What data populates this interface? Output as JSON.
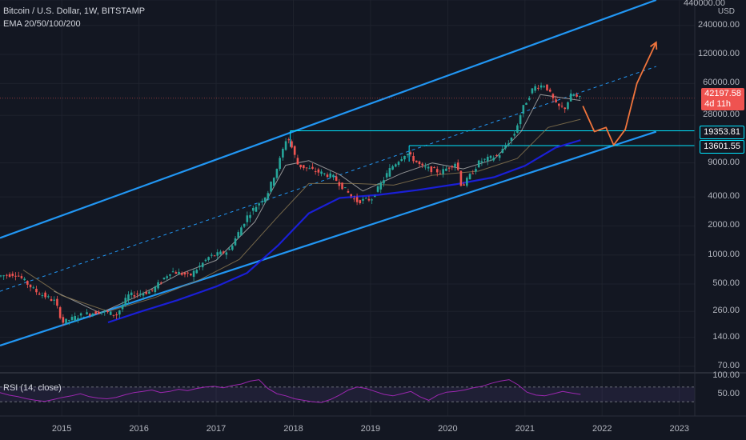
{
  "legend": {
    "title": "Bitcoin / U.S. Dollar, 1W, BITSTAMP",
    "ema": "EMA 20/50/100/200",
    "rsi": "RSI (14, close)"
  },
  "currency": "USD",
  "colors": {
    "background": "#131722",
    "channel": "#2196f3",
    "midline": "#2196f3",
    "support_box": "#00e5ff",
    "projection": "#f0743c",
    "ema20": "#b0b0b0",
    "ema50": "#8d7a52",
    "ema200": "#1a1fd6",
    "up_candle": "#26a69a",
    "down_candle": "#ef5350",
    "rsi_line": "#9c27b0",
    "rsi_band": "#7e57c2"
  },
  "chart_data": {
    "type": "candlestick",
    "title": "Bitcoin / U.S. Dollar, 1W, BITSTAMP",
    "scale": "log",
    "ylim": [
      60,
      440000
    ],
    "y_ticks": [
      "440000.00",
      "240000.00",
      "120000.00",
      "60000.00",
      "28000.00",
      "9000.00",
      "4000.00",
      "2000.00",
      "1000.00",
      "500.00",
      "260.00",
      "140.00",
      "70.00"
    ],
    "x_ticks": [
      "2015",
      "2016",
      "2017",
      "2018",
      "2019",
      "2020",
      "2021",
      "2022",
      "2023"
    ],
    "x_range": [
      2014.2,
      2023.2
    ],
    "price_path": [
      [
        2014.2,
        600
      ],
      [
        2014.45,
        640
      ],
      [
        2014.7,
        420
      ],
      [
        2014.95,
        330
      ],
      [
        2015.05,
        200
      ],
      [
        2015.3,
        240
      ],
      [
        2015.55,
        260
      ],
      [
        2015.75,
        240
      ],
      [
        2015.9,
        380
      ],
      [
        2016.2,
        420
      ],
      [
        2016.45,
        680
      ],
      [
        2016.7,
        610
      ],
      [
        2016.95,
        960
      ],
      [
        2017.2,
        1100
      ],
      [
        2017.45,
        2600
      ],
      [
        2017.7,
        4300
      ],
      [
        2017.85,
        9000
      ],
      [
        2017.96,
        17500
      ],
      [
        2018.1,
        8500
      ],
      [
        2018.3,
        7500
      ],
      [
        2018.55,
        6500
      ],
      [
        2018.85,
        3600
      ],
      [
        2019.05,
        3800
      ],
      [
        2019.3,
        8000
      ],
      [
        2019.5,
        11500
      ],
      [
        2019.7,
        8200
      ],
      [
        2019.95,
        7200
      ],
      [
        2020.15,
        9200
      ],
      [
        2020.22,
        5000
      ],
      [
        2020.45,
        9300
      ],
      [
        2020.7,
        10800
      ],
      [
        2020.9,
        18000
      ],
      [
        2021.0,
        32000
      ],
      [
        2021.15,
        55000
      ],
      [
        2021.3,
        58000
      ],
      [
        2021.45,
        35000
      ],
      [
        2021.55,
        33000
      ],
      [
        2021.65,
        48000
      ],
      [
        2021.72,
        42197.58
      ]
    ],
    "ema_series": [
      {
        "name": "EMA 20",
        "points": [
          [
            2014.9,
            420
          ],
          [
            2015.5,
            250
          ],
          [
            2016.0,
            380
          ],
          [
            2016.5,
            620
          ],
          [
            2017.0,
            880
          ],
          [
            2017.5,
            2200
          ],
          [
            2017.9,
            8500
          ],
          [
            2018.2,
            9500
          ],
          [
            2018.6,
            6800
          ],
          [
            2018.9,
            4600
          ],
          [
            2019.4,
            7000
          ],
          [
            2019.8,
            9000
          ],
          [
            2020.2,
            7800
          ],
          [
            2020.6,
            9800
          ],
          [
            2020.95,
            19000
          ],
          [
            2021.2,
            46000
          ],
          [
            2021.72,
            40000
          ]
        ]
      },
      {
        "name": "EMA 100",
        "points": [
          [
            2014.5,
            700
          ],
          [
            2015.0,
            380
          ],
          [
            2015.6,
            260
          ],
          [
            2016.2,
            360
          ],
          [
            2016.8,
            560
          ],
          [
            2017.3,
            900
          ],
          [
            2017.8,
            2500
          ],
          [
            2018.2,
            5500
          ],
          [
            2018.8,
            5500
          ],
          [
            2019.3,
            5300
          ],
          [
            2019.8,
            6700
          ],
          [
            2020.4,
            7400
          ],
          [
            2020.9,
            10000
          ],
          [
            2021.3,
            21000
          ],
          [
            2021.72,
            25500
          ]
        ]
      },
      {
        "name": "EMA 200",
        "points": [
          [
            2015.6,
            200
          ],
          [
            2016.0,
            255
          ],
          [
            2016.5,
            340
          ],
          [
            2017.0,
            470
          ],
          [
            2017.4,
            650
          ],
          [
            2017.8,
            1250
          ],
          [
            2018.2,
            2700
          ],
          [
            2018.6,
            3900
          ],
          [
            2019.1,
            4200
          ],
          [
            2019.6,
            4700
          ],
          [
            2020.1,
            5400
          ],
          [
            2020.6,
            6400
          ],
          [
            2021.0,
            8400
          ],
          [
            2021.4,
            13000
          ],
          [
            2021.72,
            15500
          ]
        ]
      }
    ],
    "channel": {
      "upper": [
        [
          2014.2,
          1500
        ],
        [
          2022.7,
          440000
        ]
      ],
      "lower": [
        [
          2014.2,
          115
        ],
        [
          2022.7,
          19000
        ]
      ],
      "mid": [
        [
          2014.2,
          420
        ],
        [
          2022.7,
          90000
        ]
      ]
    },
    "horizontal_levels": [
      {
        "value": 19353.81,
        "label": "19353.81",
        "from": 2017.96
      },
      {
        "value": 13601.55,
        "label": "13601.55",
        "from": 2019.5
      }
    ],
    "current_price": {
      "value": 42197.58,
      "label": "42197.58",
      "countdown": "4d 11h"
    },
    "projection_path": [
      [
        2021.75,
        35000
      ],
      [
        2021.9,
        19000
      ],
      [
        2022.05,
        21000
      ],
      [
        2022.15,
        13800
      ],
      [
        2022.3,
        20000
      ],
      [
        2022.45,
        60000
      ],
      [
        2022.7,
        160000
      ]
    ],
    "rsi": {
      "name": "RSI (14, close)",
      "ylim": [
        0,
        100
      ],
      "y_ticks": [
        "100.00",
        "50.00"
      ],
      "band": [
        30,
        70
      ],
      "values": [
        55,
        48,
        44,
        38,
        34,
        31,
        36,
        42,
        46,
        52,
        44,
        40,
        38,
        42,
        49,
        55,
        58,
        62,
        55,
        58,
        64,
        60,
        66,
        70,
        72,
        68,
        74,
        78,
        86,
        90,
        66,
        52,
        46,
        38,
        34,
        30,
        28,
        36,
        48,
        62,
        70,
        66,
        58,
        50,
        46,
        52,
        58,
        44,
        34,
        48,
        56,
        58,
        62,
        68,
        72,
        80,
        86,
        90,
        76,
        56,
        48,
        46,
        52,
        58,
        54,
        50
      ]
    }
  }
}
